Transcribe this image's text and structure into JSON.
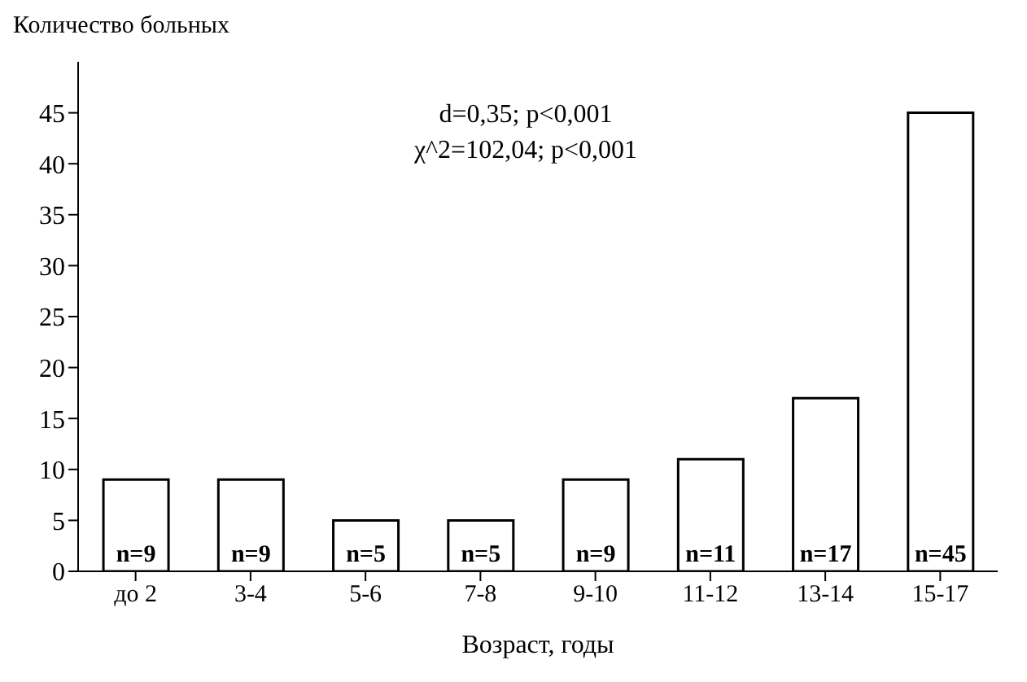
{
  "chart_data": {
    "type": "bar",
    "ylabel": "Количество больных",
    "xlabel": "Возраст, годы",
    "categories": [
      "до 2",
      "3-4",
      "5-6",
      "7-8",
      "9-10",
      "11-12",
      "13-14",
      "15-17"
    ],
    "values": [
      9,
      9,
      5,
      5,
      9,
      11,
      17,
      45
    ],
    "value_labels": [
      "n=9",
      "n=9",
      "n=5",
      "n=5",
      "n=9",
      "n=11",
      "n=17",
      "n=45"
    ],
    "color": "#ffffff",
    "ylim": [
      0,
      50
    ],
    "yticks": [
      0,
      5,
      10,
      15,
      20,
      25,
      30,
      35,
      40,
      45
    ],
    "annotations": [
      "d=0,35; p<0,001",
      "χ^2=102,04; p<0,001"
    ]
  }
}
